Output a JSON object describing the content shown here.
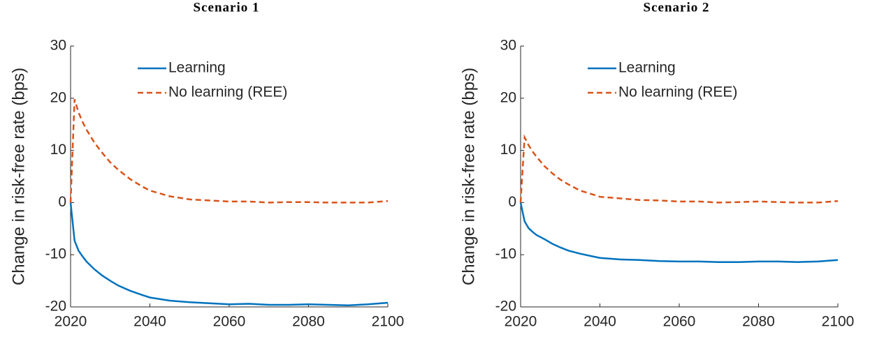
{
  "chart_data": [
    {
      "type": "line",
      "title": "Scenario 1",
      "ylabel": "Change in risk-free rate (bps)",
      "x": [
        2020,
        2021,
        2022,
        2023,
        2024,
        2026,
        2028,
        2030,
        2032,
        2035,
        2038,
        2040,
        2045,
        2050,
        2055,
        2060,
        2065,
        2070,
        2075,
        2080,
        2085,
        2090,
        2095,
        2100
      ],
      "series": [
        {
          "name": "Learning",
          "color": "#0072bd",
          "dashed": false,
          "values": [
            0,
            -7.3,
            -9.2,
            -10.3,
            -11.3,
            -12.8,
            -14.0,
            -15.0,
            -15.9,
            -16.9,
            -17.7,
            -18.2,
            -18.8,
            -19.1,
            -19.3,
            -19.5,
            -19.4,
            -19.6,
            -19.6,
            -19.5,
            -19.6,
            -19.7,
            -19.5,
            -19.2
          ]
        },
        {
          "name": "No learning (REE)",
          "color": "#d95319",
          "dashed": true,
          "values": [
            0,
            19.8,
            17.3,
            15.5,
            14.0,
            11.5,
            9.5,
            7.7,
            6.3,
            4.5,
            3.1,
            2.3,
            1.2,
            0.6,
            0.4,
            0.2,
            0.2,
            0.0,
            0.1,
            0.1,
            0.0,
            0.0,
            0.0,
            0.3
          ]
        }
      ],
      "xlim": [
        2020,
        2100
      ],
      "xticks": [
        2020,
        2040,
        2060,
        2080,
        2100
      ],
      "ylim": [
        -20,
        30
      ],
      "yticks": [
        -20,
        -10,
        0,
        10,
        20,
        30
      ],
      "legend": "upper center",
      "grid": false
    },
    {
      "type": "line",
      "title": "Scenario 2",
      "ylabel": "Change in risk-free rate (bps)",
      "x": [
        2020,
        2021,
        2022,
        2023,
        2024,
        2026,
        2028,
        2030,
        2032,
        2035,
        2038,
        2040,
        2045,
        2050,
        2055,
        2060,
        2065,
        2070,
        2075,
        2080,
        2085,
        2090,
        2095,
        2100
      ],
      "series": [
        {
          "name": "Learning",
          "color": "#0072bd",
          "dashed": false,
          "values": [
            0,
            -3.6,
            -4.9,
            -5.6,
            -6.2,
            -7.0,
            -7.9,
            -8.6,
            -9.2,
            -9.8,
            -10.3,
            -10.6,
            -10.9,
            -11.0,
            -11.2,
            -11.3,
            -11.3,
            -11.4,
            -11.4,
            -11.3,
            -11.3,
            -11.4,
            -11.3,
            -11.0
          ]
        },
        {
          "name": "No learning (REE)",
          "color": "#d95319",
          "dashed": true,
          "values": [
            0,
            12.5,
            11.0,
            9.8,
            8.8,
            7.0,
            5.6,
            4.4,
            3.5,
            2.3,
            1.6,
            1.1,
            0.8,
            0.5,
            0.4,
            0.2,
            0.2,
            0.0,
            0.1,
            0.2,
            0.1,
            0.0,
            0.0,
            0.3
          ]
        }
      ],
      "xlim": [
        2020,
        2100
      ],
      "xticks": [
        2020,
        2040,
        2060,
        2080,
        2100
      ],
      "ylim": [
        -20,
        30
      ],
      "yticks": [
        -20,
        -10,
        0,
        10,
        20,
        30
      ],
      "legend": "upper center",
      "grid": false
    }
  ]
}
